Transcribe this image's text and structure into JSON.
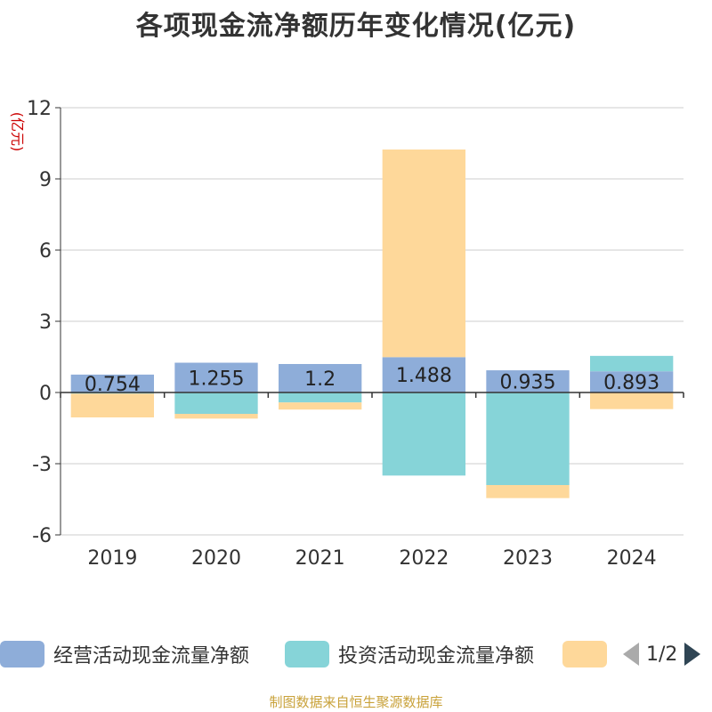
{
  "title": "各项现金流净额历年变化情况(亿元)",
  "y_unit": "(亿元)",
  "source": "制图数据来自恒生聚源数据库",
  "legend": {
    "items": [
      {
        "label": "经营活动现金流量净额",
        "color": "#8eadd9"
      },
      {
        "label": "投资活动现金流量净额",
        "color": "#86d4d8"
      },
      {
        "label": "",
        "color": "#fed89a"
      }
    ],
    "pager": "1/2"
  },
  "chart_data": {
    "type": "bar",
    "stacked": true,
    "title": "各项现金流净额历年变化情况(亿元)",
    "ylabel": "(亿元)",
    "ylim": [
      -6,
      12
    ],
    "yticks": [
      -6,
      -3,
      0,
      3,
      6,
      9,
      12
    ],
    "grid": true,
    "categories": [
      "2019",
      "2020",
      "2021",
      "2022",
      "2023",
      "2024"
    ],
    "series": [
      {
        "name": "经营活动现金流量净额",
        "color": "#8eadd9",
        "values": [
          0.754,
          1.255,
          1.2,
          1.488,
          0.935,
          0.893
        ],
        "labels": [
          "0.754",
          "1.255",
          "1.2",
          "1.488",
          "0.935",
          "0.893"
        ]
      },
      {
        "name": "投资活动现金流量净额",
        "color": "#86d4d8",
        "values": [
          -0.05,
          -0.9,
          -0.42,
          -3.5,
          -3.9,
          0.65
        ]
      },
      {
        "color": "#fed89a",
        "values": [
          -1.0,
          -0.2,
          -0.3,
          8.75,
          -0.55,
          -0.7
        ]
      }
    ]
  }
}
